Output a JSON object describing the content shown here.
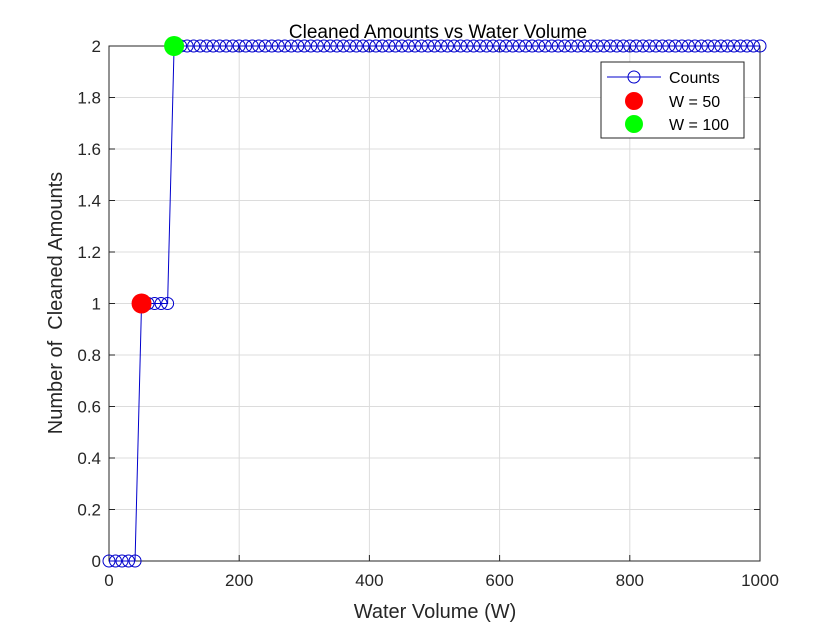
{
  "chart_data": {
    "type": "line",
    "title": "Cleaned Amounts vs Water Volume",
    "xlabel": "Water Volume (W)",
    "ylabel": "Number of  Cleaned Amounts",
    "xlim": [
      0,
      1000
    ],
    "ylim": [
      0,
      2
    ],
    "xticks": [
      0,
      200,
      400,
      600,
      800,
      1000
    ],
    "xtick_labels": [
      "0",
      "200",
      "400",
      "600",
      "800",
      "1000"
    ],
    "yticks": [
      0,
      0.2,
      0.4,
      0.6,
      0.8,
      1,
      1.2,
      1.4,
      1.6,
      1.8,
      2
    ],
    "ytick_labels": [
      "0",
      "0.2",
      "0.4",
      "0.6",
      "0.8",
      "1",
      "1.2",
      "1.4",
      "1.6",
      "1.8",
      "2"
    ],
    "grid": true,
    "legend_position": "top-right",
    "series": [
      {
        "name": "Counts",
        "color": "#0000cc",
        "marker": "open-circle",
        "step": 10,
        "x_start": 0,
        "x_end": 1000,
        "segments": [
          {
            "from": 0,
            "to": 40,
            "y": 0
          },
          {
            "from": 50,
            "to": 90,
            "y": 1
          },
          {
            "from": 100,
            "to": 1000,
            "y": 2
          }
        ]
      }
    ],
    "highlights": [
      {
        "name": "W = 50",
        "x": 50,
        "y": 1,
        "color": "#ff0000"
      },
      {
        "name": "W = 100",
        "x": 100,
        "y": 2,
        "color": "#00ff00"
      }
    ]
  }
}
